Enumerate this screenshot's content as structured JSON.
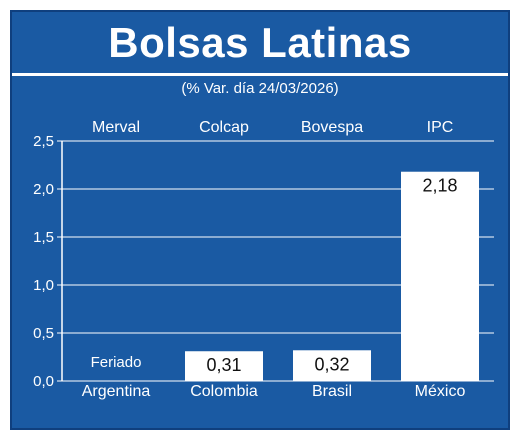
{
  "title": "Bolsas Latinas",
  "subtitle": "(% Var. día 24/03/2026)",
  "colors": {
    "background": "#1a5aa3",
    "bar": "#ffffff",
    "grid": "#ffffff",
    "text": "#ffffff",
    "value_text": "#111111"
  },
  "chart_data": {
    "type": "bar",
    "title": "Bolsas Latinas",
    "subtitle": "(% Var. día 24/03/2026)",
    "categories": [
      "Argentina",
      "Colombia",
      "Brasil",
      "México"
    ],
    "index_names": [
      "Merval",
      "Colcap",
      "Bovespa",
      "IPC"
    ],
    "values": [
      null,
      0.31,
      0.32,
      2.18
    ],
    "value_labels": [
      "",
      "0,31",
      "0,32",
      "2,18"
    ],
    "notes": [
      "Feriado",
      "",
      "",
      ""
    ],
    "ylim": [
      0,
      2.5
    ],
    "yticks": [
      0,
      0.5,
      1.0,
      1.5,
      2.0,
      2.5
    ],
    "ytick_labels": [
      "0,0",
      "0,5",
      "1,0",
      "1,5",
      "2,0",
      "2,5"
    ],
    "grid": true,
    "xlabel": "",
    "ylabel": ""
  }
}
